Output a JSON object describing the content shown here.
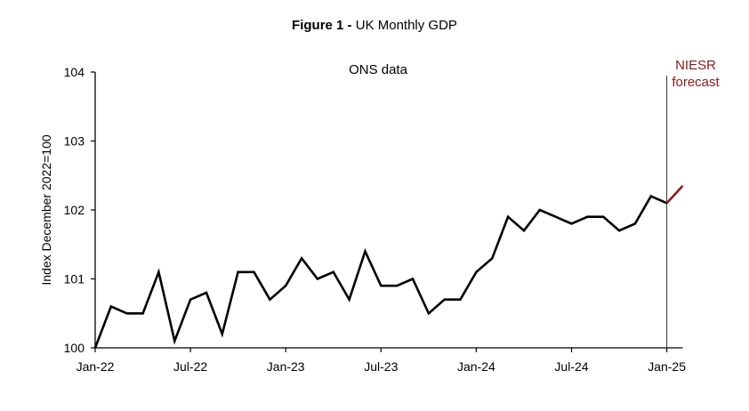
{
  "title": {
    "bold": "Figure 1 -",
    "text": "UK Monthly GDP"
  },
  "chart_data": {
    "type": "line",
    "title": "Figure 1 - UK Monthly GDP",
    "ylabel": "Index December 2022=100",
    "xlabel": "",
    "ylim": [
      100,
      104
    ],
    "yticks": [
      "100",
      "101",
      "102",
      "103",
      "104"
    ],
    "xticks": [
      "Jan-22",
      "Jul-22",
      "Jan-23",
      "Jul-23",
      "Jan-24",
      "Jul-24",
      "Jan-25"
    ],
    "grid": false,
    "annotations": {
      "ons_label": "ONS data",
      "forecast_label_line1": "NIESR",
      "forecast_label_line2": "forecast"
    },
    "x": [
      "Jan-22",
      "Feb-22",
      "Mar-22",
      "Apr-22",
      "May-22",
      "Jun-22",
      "Jul-22",
      "Aug-22",
      "Sep-22",
      "Oct-22",
      "Nov-22",
      "Dec-22",
      "Jan-23",
      "Feb-23",
      "Mar-23",
      "Apr-23",
      "May-23",
      "Jun-23",
      "Jul-23",
      "Aug-23",
      "Sep-23",
      "Oct-23",
      "Nov-23",
      "Dec-23",
      "Jan-24",
      "Feb-24",
      "Mar-24",
      "Apr-24",
      "May-24",
      "Jun-24",
      "Jul-24",
      "Aug-24",
      "Sep-24",
      "Oct-24",
      "Nov-24",
      "Dec-24",
      "Jan-25",
      "Feb-25"
    ],
    "series": [
      {
        "values": [
          100.0,
          100.6,
          100.5,
          100.5,
          101.1,
          100.1,
          100.7,
          100.8,
          100.2,
          101.1,
          101.1,
          100.7,
          100.9,
          101.3,
          101.0,
          101.1,
          100.7,
          101.4,
          100.9,
          100.9,
          101.0,
          100.5,
          100.7,
          100.7,
          101.1,
          101.3,
          101.9,
          101.7,
          102.0,
          101.9,
          101.8,
          101.9,
          101.9,
          101.7,
          101.8,
          102.2,
          102.1,
          null
        ],
        "color": "#000000"
      },
      {
        "values": [
          null,
          null,
          null,
          null,
          null,
          null,
          null,
          null,
          null,
          null,
          null,
          null,
          null,
          null,
          null,
          null,
          null,
          null,
          null,
          null,
          null,
          null,
          null,
          null,
          null,
          null,
          null,
          null,
          null,
          null,
          null,
          null,
          null,
          null,
          null,
          null,
          102.1,
          102.35
        ],
        "color": "#8b1a1a"
      }
    ],
    "forecast_divider_at": "Jan-25"
  }
}
